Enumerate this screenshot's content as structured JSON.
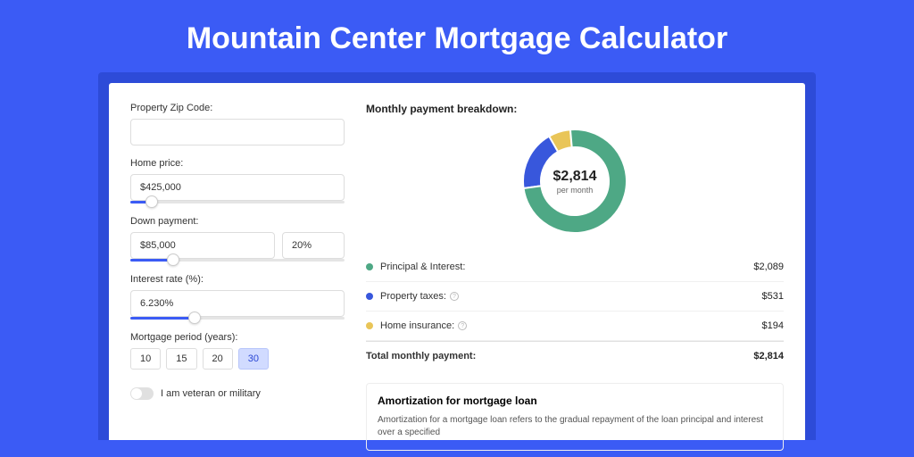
{
  "page": {
    "title": "Mountain Center Mortgage Calculator",
    "background_color": "#3b5bf5",
    "shadow_color": "#2d4bd8",
    "card_bg": "#ffffff"
  },
  "form": {
    "zip": {
      "label": "Property Zip Code:",
      "value": ""
    },
    "home_price": {
      "label": "Home price:",
      "value": "$425,000",
      "slider_pct": 10
    },
    "down_payment": {
      "label": "Down payment:",
      "amount": "$85,000",
      "percent": "20%",
      "slider_pct": 20
    },
    "interest_rate": {
      "label": "Interest rate (%):",
      "value": "6.230%",
      "slider_pct": 30
    },
    "period": {
      "label": "Mortgage period (years):",
      "options": [
        "10",
        "15",
        "20",
        "30"
      ],
      "selected": "30"
    },
    "veteran": {
      "label": "I am veteran or military",
      "checked": false
    }
  },
  "breakdown": {
    "title": "Monthly payment breakdown:",
    "center_amount": "$2,814",
    "center_sub": "per month",
    "donut": {
      "segments": [
        {
          "label": "Principal & Interest:",
          "value": "$2,089",
          "color": "#4ea885",
          "pct": 74.2
        },
        {
          "label": "Property taxes:",
          "value": "$531",
          "color": "#3857dc",
          "pct": 18.9,
          "info": true
        },
        {
          "label": "Home insurance:",
          "value": "$194",
          "color": "#e9c558",
          "pct": 6.9,
          "info": true
        }
      ]
    },
    "total": {
      "label": "Total monthly payment:",
      "value": "$2,814"
    }
  },
  "amortization": {
    "title": "Amortization for mortgage loan",
    "text": "Amortization for a mortgage loan refers to the gradual repayment of the loan principal and interest over a specified"
  }
}
